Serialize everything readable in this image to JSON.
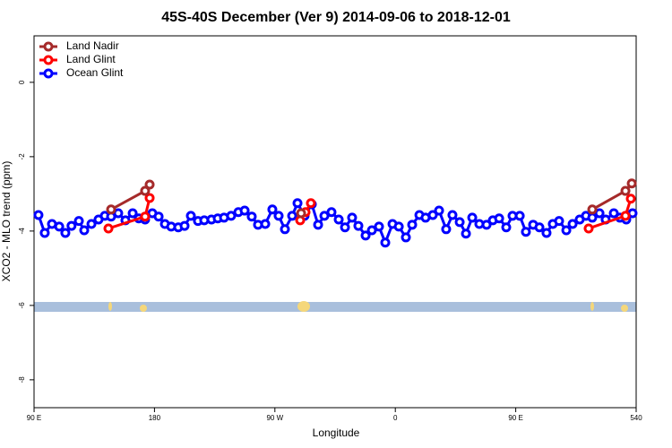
{
  "chart_data": {
    "type": "line",
    "title": "45S-40S December (Ver 9)   2014-09-06 to 2018-12-01",
    "xlabel": "Longitude",
    "ylabel": "XCO2 - MLO trend (ppm)",
    "xlim": [
      90,
      540
    ],
    "ylim": [
      -8.75,
      1.25
    ],
    "xticks": [
      {
        "value": 90,
        "label": "90 E"
      },
      180,
      {
        "value": 270,
        "label": "90 W"
      },
      {
        "value": 360,
        "label": "0"
      },
      {
        "value": 450,
        "label": "90 E"
      },
      540
    ],
    "yticks": [
      0,
      -2,
      -4,
      -6,
      -8
    ],
    "legend": "top-left",
    "grid": false,
    "series": [
      {
        "name": "Land Nadir",
        "color": "#a52a2a",
        "x": [
          147.6,
          173,
          176.4,
          null,
          289.6,
          null,
          507.2,
          532,
          536.7
        ],
        "values": [
          -3.42,
          -2.92,
          -2.75,
          null,
          -3.52,
          null,
          -3.42,
          -2.92,
          -2.72
        ]
      },
      {
        "name": "Land Glint",
        "color": "#ff0000",
        "x": [
          145.6,
          173,
          176.4,
          null,
          288.9,
          292.9,
          296.9,
          null,
          504.5,
          532,
          536
        ],
        "values": [
          -3.93,
          -3.61,
          -3.11,
          null,
          -3.71,
          -3.49,
          -3.25,
          null,
          -3.93,
          -3.59,
          -3.13
        ]
      },
      {
        "name": "Ocean Glint",
        "color": "#0000ff",
        "x": [
          93.3,
          98,
          103.4,
          108.8,
          113.4,
          118,
          123.5,
          127.5,
          132.9,
          138.2,
          142.9,
          147.6,
          152.9,
          158.3,
          163.7,
          168.3,
          173,
          178.4,
          183.1,
          187.8,
          192.5,
          197.8,
          202.5,
          207.2,
          212.5,
          217.2,
          222.6,
          227.3,
          232,
          237.3,
          242.7,
          247.4,
          252.7,
          257.4,
          262.8,
          268.1,
          272.8,
          277.5,
          282.9,
          286.9,
          292.2,
          297.6,
          302.3,
          307,
          312.3,
          317.7,
          322.4,
          327.7,
          332.4,
          337.8,
          342.5,
          347.8,
          352.5,
          357.9,
          362.6,
          367.9,
          372.6,
          378,
          382.6,
          388,
          392.7,
          398,
          402.7,
          408.1,
          412.8,
          417.5,
          422.8,
          428.2,
          432.9,
          437.6,
          442.9,
          447.6,
          453,
          457.6,
          463,
          467.7,
          473,
          477.7,
          482.4,
          487.8,
          492.5,
          497.8,
          502.5,
          507.2,
          512.6,
          517.2,
          523.3,
          527.9,
          532.6,
          537.3
        ],
        "values": [
          -3.57,
          -4.05,
          -3.81,
          -3.88,
          -4.05,
          -3.86,
          -3.73,
          -3.98,
          -3.81,
          -3.69,
          -3.59,
          -3.61,
          -3.52,
          -3.71,
          -3.52,
          -3.66,
          -3.69,
          -3.52,
          -3.61,
          -3.81,
          -3.88,
          -3.9,
          -3.86,
          -3.59,
          -3.73,
          -3.71,
          -3.69,
          -3.66,
          -3.64,
          -3.59,
          -3.49,
          -3.45,
          -3.61,
          -3.83,
          -3.81,
          -3.42,
          -3.59,
          -3.95,
          -3.59,
          -3.25,
          -3.59,
          -3.28,
          -3.83,
          -3.59,
          -3.49,
          -3.69,
          -3.9,
          -3.64,
          -3.86,
          -4.12,
          -3.98,
          -3.88,
          -4.31,
          -3.81,
          -3.88,
          -4.17,
          -3.83,
          -3.57,
          -3.64,
          -3.57,
          -3.45,
          -3.95,
          -3.57,
          -3.76,
          -4.07,
          -3.64,
          -3.81,
          -3.83,
          -3.71,
          -3.66,
          -3.9,
          -3.59,
          -3.59,
          -4.02,
          -3.83,
          -3.9,
          -4.05,
          -3.81,
          -3.73,
          -3.98,
          -3.81,
          -3.69,
          -3.59,
          -3.64,
          -3.52,
          -3.69,
          -3.52,
          -3.64,
          -3.69,
          -3.52
        ]
      }
    ]
  }
}
